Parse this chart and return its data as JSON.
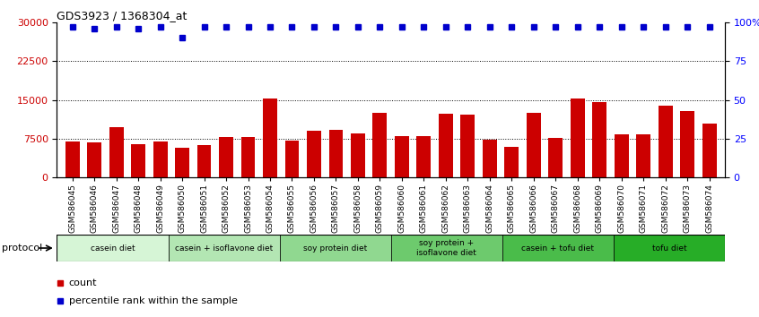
{
  "title": "GDS3923 / 1368304_at",
  "samples": [
    "GSM586045",
    "GSM586046",
    "GSM586047",
    "GSM586048",
    "GSM586049",
    "GSM586050",
    "GSM586051",
    "GSM586052",
    "GSM586053",
    "GSM586054",
    "GSM586055",
    "GSM586056",
    "GSM586057",
    "GSM586058",
    "GSM586059",
    "GSM586060",
    "GSM586061",
    "GSM586062",
    "GSM586063",
    "GSM586064",
    "GSM586065",
    "GSM586066",
    "GSM586067",
    "GSM586068",
    "GSM586069",
    "GSM586070",
    "GSM586071",
    "GSM586072",
    "GSM586073",
    "GSM586074"
  ],
  "bar_values": [
    7000,
    6800,
    9800,
    6400,
    7000,
    5800,
    6300,
    7800,
    7800,
    15300,
    7100,
    9000,
    9200,
    8600,
    12500,
    8000,
    8000,
    12300,
    12200,
    7300,
    5900,
    12500,
    7700,
    15300,
    14600,
    8400,
    8300,
    13900,
    12800,
    10500
  ],
  "percentile_values": [
    97,
    96,
    97,
    96,
    97,
    90,
    97,
    97,
    97,
    97,
    97,
    97,
    97,
    97,
    97,
    97,
    97,
    97,
    97,
    97,
    97,
    97,
    97,
    97,
    97,
    97,
    97,
    97,
    97,
    97
  ],
  "protocols": [
    {
      "label": "casein diet",
      "start": 0,
      "end": 5
    },
    {
      "label": "casein + isoflavone diet",
      "start": 5,
      "end": 10
    },
    {
      "label": "soy protein diet",
      "start": 10,
      "end": 15
    },
    {
      "label": "soy protein +\nisoflavone diet",
      "start": 15,
      "end": 20
    },
    {
      "label": "casein + tofu diet",
      "start": 20,
      "end": 25
    },
    {
      "label": "tofu diet",
      "start": 25,
      "end": 30
    }
  ],
  "protocol_colors": [
    "#d6f5d6",
    "#b3e6b3",
    "#90d890",
    "#6dca6d",
    "#4abc4a",
    "#27ad27"
  ],
  "bar_color": "#cc0000",
  "percentile_color": "#0000cc",
  "ylim_left": [
    0,
    30000
  ],
  "ylim_right": [
    0,
    100
  ],
  "yticks_left": [
    0,
    7500,
    15000,
    22500,
    30000
  ],
  "yticks_right": [
    0,
    25,
    50,
    75,
    100
  ],
  "yticklabels_right": [
    "0",
    "25",
    "50",
    "75",
    "100%"
  ]
}
